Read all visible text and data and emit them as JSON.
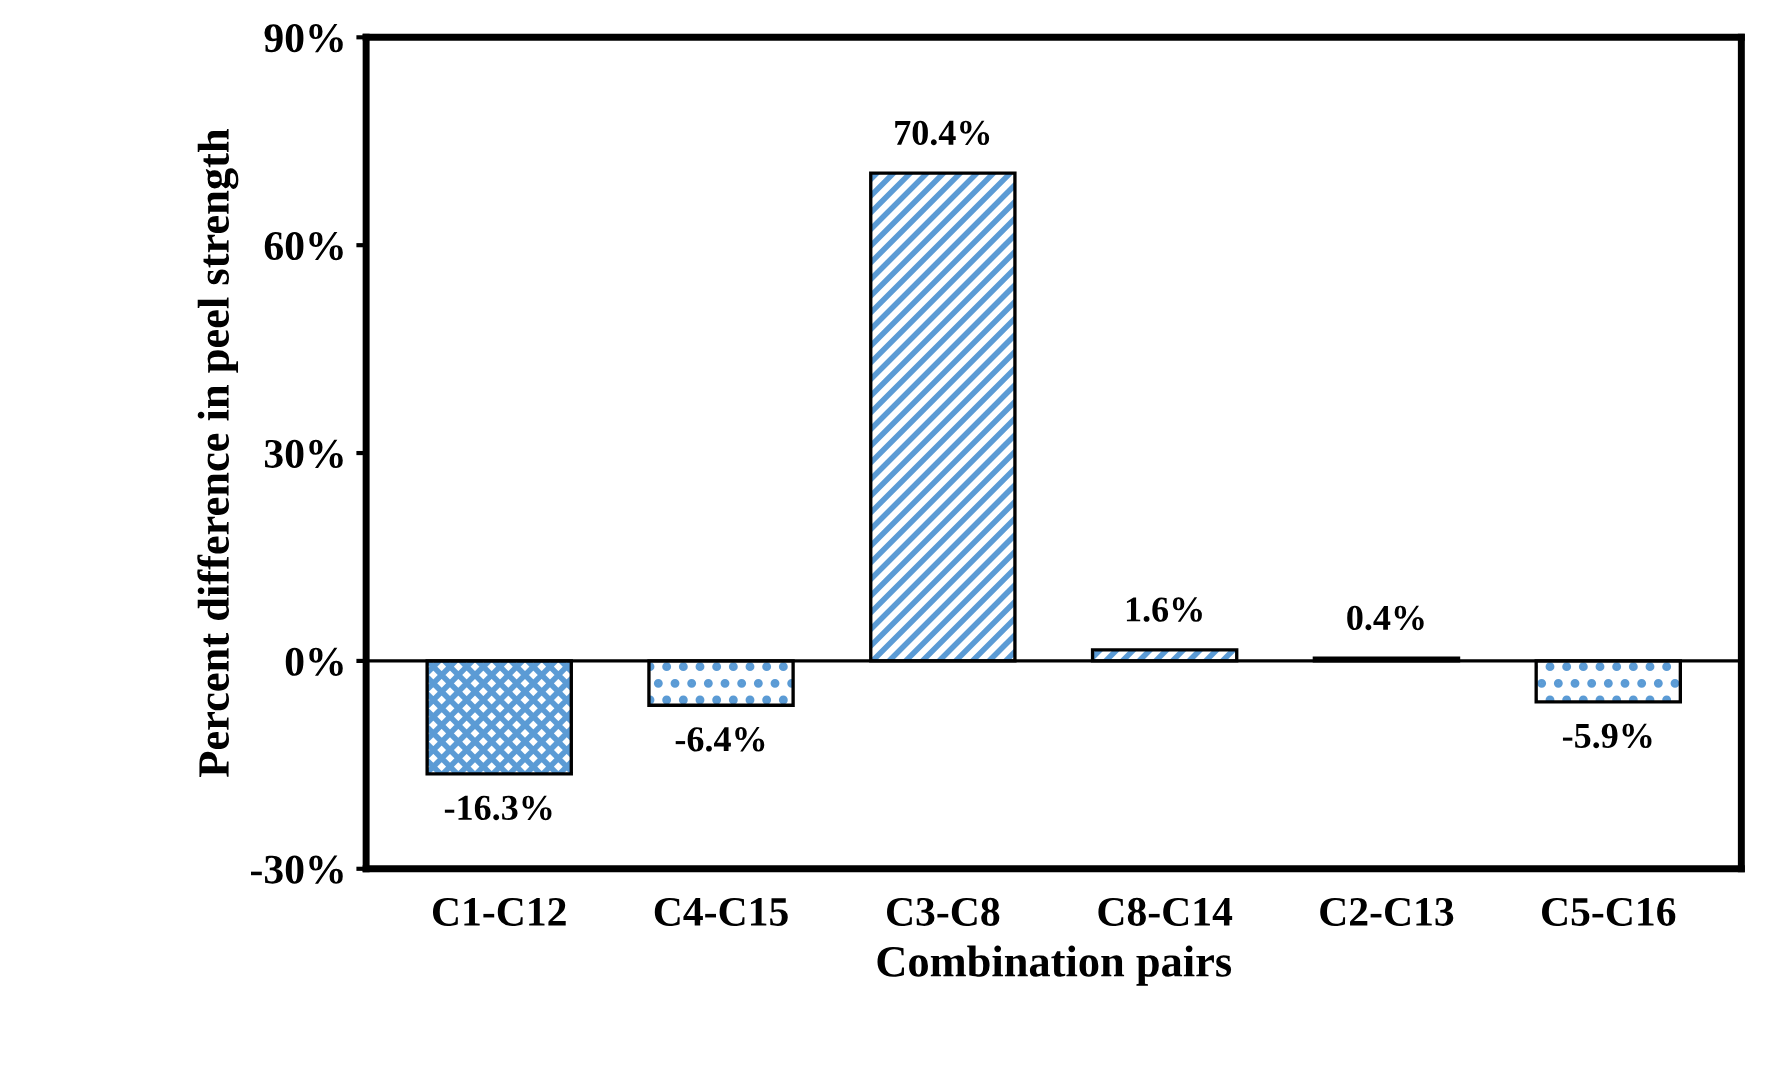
{
  "chart_data": {
    "type": "bar",
    "xlabel": "Combination pairs",
    "ylabel": "Percent difference in peel strength",
    "categories": [
      "C1-C12",
      "C4-C15",
      "C3-C8",
      "C8-C14",
      "C2-C13",
      "C5-C16"
    ],
    "values": [
      -16.3,
      -6.4,
      70.4,
      1.6,
      0.4,
      -5.9
    ],
    "value_labels": [
      "-16.3%",
      "-6.4%",
      "70.4%",
      "1.6%",
      "0.4%",
      "-5.9%"
    ],
    "colors": [
      "#5b9bd5",
      "#5b9bd5",
      "#5b9bd5",
      "#5b9bd5",
      "#000000",
      "#5b9bd5"
    ],
    "ylim": [
      -30,
      90
    ],
    "yticks": [
      {
        "value": -30,
        "label": "-30%"
      },
      {
        "value": 0,
        "label": "0%"
      },
      {
        "value": 30,
        "label": "30%"
      },
      {
        "value": 60,
        "label": "60%"
      },
      {
        "value": 90,
        "label": "90%"
      }
    ],
    "ref_lines": [
      {
        "axis": "y",
        "value": 0,
        "color": "#000000"
      }
    ],
    "grid": false,
    "legend": false
  }
}
